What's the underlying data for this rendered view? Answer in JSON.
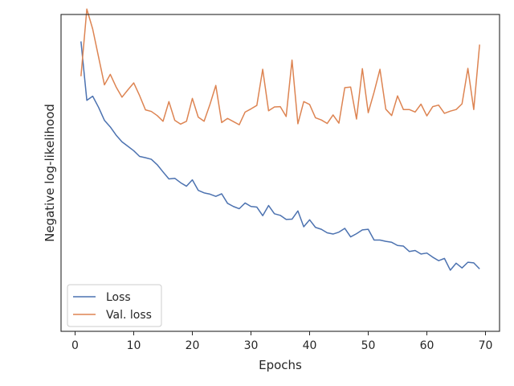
{
  "chart_data": {
    "type": "line",
    "title": "",
    "xlabel": "Epochs",
    "ylabel": "Negative log-likelihood",
    "xlim": [
      -2.4,
      72.4
    ],
    "ylim": [
      0,
      1
    ],
    "xticks": [
      "0",
      "10",
      "20",
      "30",
      "40",
      "50",
      "60",
      "70"
    ],
    "yticks_shown": false,
    "grid": false,
    "legend_position": "lower-left",
    "series": [
      {
        "name": "Loss",
        "color": "#4c72b0",
        "x": [
          1,
          2,
          3,
          4,
          5,
          6,
          7,
          8,
          9,
          10,
          11,
          12,
          13,
          14,
          15,
          16,
          17,
          18,
          19,
          20,
          21,
          22,
          23,
          24,
          25,
          26,
          27,
          28,
          29,
          30,
          31,
          32,
          33,
          34,
          35,
          36,
          37,
          38,
          39,
          40,
          41,
          42,
          43,
          44,
          45,
          46,
          47,
          48,
          49,
          50,
          51,
          52,
          53,
          54,
          55,
          56,
          57,
          58,
          59,
          60,
          61,
          62,
          63,
          64,
          65,
          66,
          67,
          68,
          69
        ],
        "y": [
          0.915,
          0.729,
          0.742,
          0.707,
          0.666,
          0.645,
          0.619,
          0.598,
          0.584,
          0.57,
          0.552,
          0.548,
          0.543,
          0.526,
          0.503,
          0.481,
          0.483,
          0.469,
          0.458,
          0.478,
          0.445,
          0.437,
          0.433,
          0.426,
          0.434,
          0.404,
          0.394,
          0.387,
          0.405,
          0.394,
          0.392,
          0.365,
          0.397,
          0.371,
          0.366,
          0.353,
          0.354,
          0.38,
          0.33,
          0.352,
          0.328,
          0.322,
          0.311,
          0.307,
          0.313,
          0.325,
          0.298,
          0.308,
          0.32,
          0.322,
          0.288,
          0.288,
          0.284,
          0.281,
          0.271,
          0.269,
          0.252,
          0.255,
          0.244,
          0.247,
          0.234,
          0.223,
          0.23,
          0.193,
          0.215,
          0.2,
          0.218,
          0.216,
          0.197
        ]
      },
      {
        "name": "Val. loss",
        "color": "#dd8452",
        "x": [
          1,
          2,
          3,
          4,
          5,
          6,
          7,
          8,
          9,
          10,
          11,
          12,
          13,
          14,
          15,
          16,
          17,
          18,
          19,
          20,
          21,
          22,
          23,
          24,
          25,
          26,
          27,
          28,
          29,
          30,
          31,
          32,
          33,
          34,
          35,
          36,
          37,
          38,
          39,
          40,
          41,
          42,
          43,
          44,
          45,
          46,
          47,
          48,
          49,
          50,
          51,
          52,
          53,
          54,
          55,
          56,
          57,
          58,
          59,
          60,
          61,
          62,
          63,
          64,
          65,
          66,
          67,
          68,
          69
        ],
        "y": [
          0.805,
          1.017,
          0.954,
          0.866,
          0.778,
          0.811,
          0.771,
          0.739,
          0.762,
          0.784,
          0.744,
          0.699,
          0.694,
          0.681,
          0.663,
          0.725,
          0.666,
          0.654,
          0.663,
          0.735,
          0.676,
          0.663,
          0.716,
          0.776,
          0.659,
          0.672,
          0.662,
          0.652,
          0.692,
          0.702,
          0.713,
          0.827,
          0.696,
          0.708,
          0.709,
          0.678,
          0.856,
          0.655,
          0.725,
          0.716,
          0.674,
          0.667,
          0.656,
          0.683,
          0.657,
          0.769,
          0.771,
          0.67,
          0.829,
          0.69,
          0.755,
          0.827,
          0.701,
          0.681,
          0.743,
          0.7,
          0.7,
          0.692,
          0.717,
          0.68,
          0.709,
          0.714,
          0.688,
          0.695,
          0.7,
          0.718,
          0.83,
          0.7,
          0.905
        ]
      }
    ]
  }
}
